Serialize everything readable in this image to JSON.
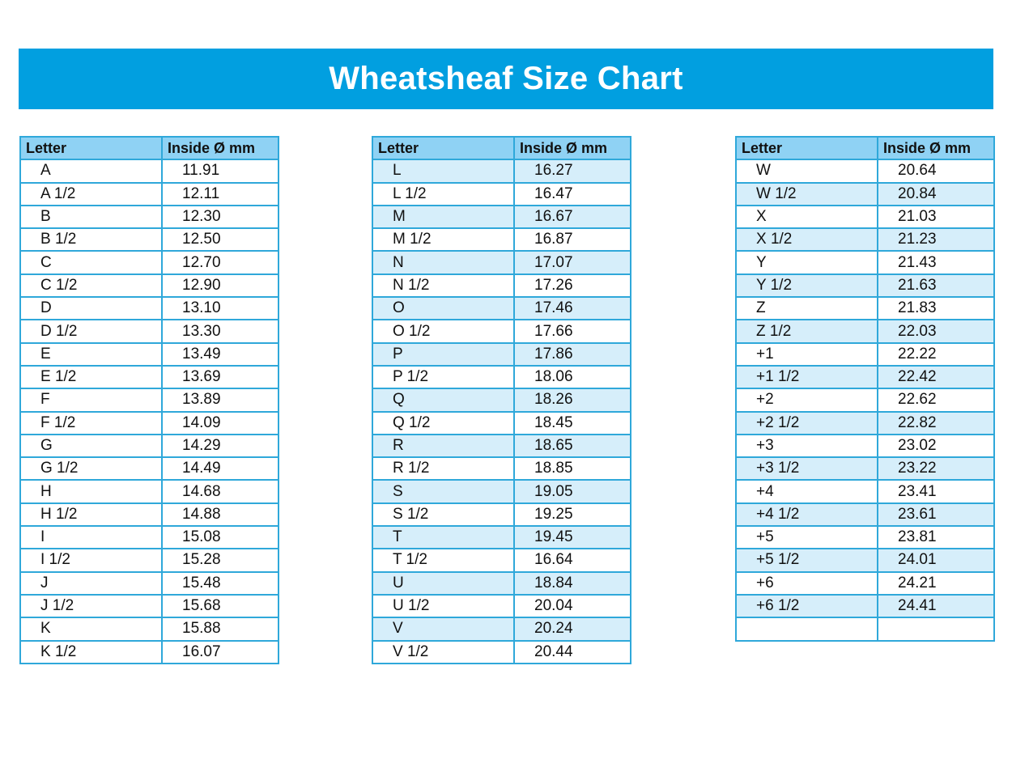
{
  "title": "Wheatsheaf Size Chart",
  "colors": {
    "banner": "#019fe0",
    "header_fill": "#8fd2f4",
    "row_stripe": "#d6eefa",
    "border": "#2fa8da"
  },
  "tables": [
    {
      "headers": [
        "Letter",
        "Inside Ø mm"
      ],
      "rows": [
        [
          "A",
          "11.91"
        ],
        [
          "A 1/2",
          "12.11"
        ],
        [
          "B",
          "12.30"
        ],
        [
          "B 1/2",
          "12.50"
        ],
        [
          "C",
          "12.70"
        ],
        [
          "C 1/2",
          "12.90"
        ],
        [
          "D",
          "13.10"
        ],
        [
          "D 1/2",
          "13.30"
        ],
        [
          "E",
          "13.49"
        ],
        [
          "E 1/2",
          "13.69"
        ],
        [
          "F",
          "13.89"
        ],
        [
          "F 1/2",
          "14.09"
        ],
        [
          "G",
          "14.29"
        ],
        [
          "G 1/2",
          "14.49"
        ],
        [
          "H",
          "14.68"
        ],
        [
          "H 1/2",
          "14.88"
        ],
        [
          "I",
          "15.08"
        ],
        [
          "I 1/2",
          "15.28"
        ],
        [
          "J",
          "15.48"
        ],
        [
          "J 1/2",
          "15.68"
        ],
        [
          "K",
          "15.88"
        ],
        [
          "K 1/2",
          "16.07"
        ]
      ]
    },
    {
      "headers": [
        "Letter",
        "Inside Ø mm"
      ],
      "rows": [
        [
          "L",
          "16.27"
        ],
        [
          "L 1/2",
          "16.47"
        ],
        [
          "M",
          "16.67"
        ],
        [
          "M 1/2",
          "16.87"
        ],
        [
          "N",
          "17.07"
        ],
        [
          "N 1/2",
          "17.26"
        ],
        [
          "O",
          "17.46"
        ],
        [
          "O 1/2",
          "17.66"
        ],
        [
          "P",
          "17.86"
        ],
        [
          "P 1/2",
          "18.06"
        ],
        [
          "Q",
          "18.26"
        ],
        [
          "Q 1/2",
          "18.45"
        ],
        [
          "R",
          "18.65"
        ],
        [
          "R 1/2",
          "18.85"
        ],
        [
          "S",
          "19.05"
        ],
        [
          "S 1/2",
          "19.25"
        ],
        [
          "T",
          "19.45"
        ],
        [
          "T 1/2",
          "16.64"
        ],
        [
          "U",
          "18.84"
        ],
        [
          "U 1/2",
          "20.04"
        ],
        [
          "V",
          "20.24"
        ],
        [
          "V 1/2",
          "20.44"
        ]
      ]
    },
    {
      "headers": [
        "Letter",
        "Inside Ø mm"
      ],
      "rows": [
        [
          "W",
          "20.64"
        ],
        [
          "W 1/2",
          "20.84"
        ],
        [
          "X",
          "21.03"
        ],
        [
          "X 1/2",
          "21.23"
        ],
        [
          "Y",
          "21.43"
        ],
        [
          "Y 1/2",
          "21.63"
        ],
        [
          "Z",
          "21.83"
        ],
        [
          "Z 1/2",
          "22.03"
        ],
        [
          "+1",
          "22.22"
        ],
        [
          "+1 1/2",
          "22.42"
        ],
        [
          "+2",
          "22.62"
        ],
        [
          "+2 1/2",
          "22.82"
        ],
        [
          "+3",
          "23.02"
        ],
        [
          "+3 1/2",
          "23.22"
        ],
        [
          "+4",
          "23.41"
        ],
        [
          "+4 1/2",
          "23.61"
        ],
        [
          "+5",
          "23.81"
        ],
        [
          "+5 1/2",
          "24.01"
        ],
        [
          "+6",
          "24.21"
        ],
        [
          "+6 1/2",
          "24.41"
        ],
        [
          "",
          ""
        ]
      ]
    }
  ]
}
